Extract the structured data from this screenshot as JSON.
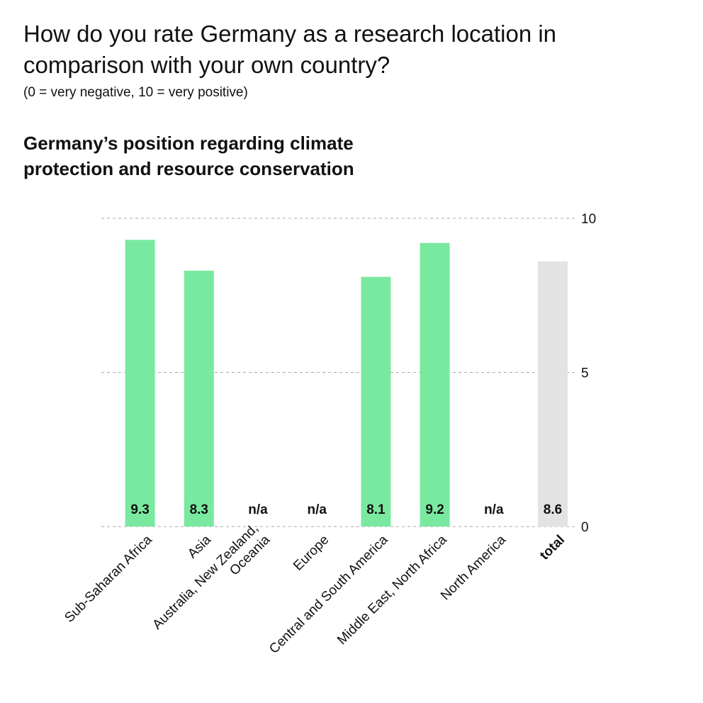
{
  "header": {
    "title": "How do you rate Germany as a research location in comparison with your own country?",
    "subtitle": "(0 = very negative, 10 = very positive)"
  },
  "colors": {
    "bar": "#7ae9a0",
    "total_bar": "#e3e3e3",
    "gridline": "#aaaaaa",
    "text": "#111111"
  },
  "chart_data": {
    "type": "bar",
    "title": "Germany’s position regarding climate protection and resource conservation",
    "categories": [
      "Sub-Saharan Africa",
      "Asia",
      "Australia, New Zealand, Oceania",
      "Europe",
      "Central and South America",
      "Middle East, North Africa",
      "North America",
      "total"
    ],
    "category_lines": [
      [
        "Sub-Saharan Africa"
      ],
      [
        "Asia"
      ],
      [
        "Australia, New Zealand,",
        "Oceania"
      ],
      [
        "Europe"
      ],
      [
        "Central and South America"
      ],
      [
        "Middle East, North Africa"
      ],
      [
        "North America"
      ],
      [
        "total"
      ]
    ],
    "values": [
      9.3,
      8.3,
      null,
      null,
      8.1,
      9.2,
      null,
      8.6
    ],
    "value_labels": [
      "9.3",
      "8.3",
      "n/a",
      "n/a",
      "8.1",
      "9.2",
      "n/a",
      "8.6"
    ],
    "highlight_category": "total",
    "ylim": [
      0,
      10
    ],
    "yticks": [
      0,
      5,
      10
    ],
    "ytick_labels": [
      "0",
      "5",
      "10"
    ],
    "y_axis_side": "right",
    "grid": true,
    "xlabel": "",
    "ylabel": ""
  }
}
